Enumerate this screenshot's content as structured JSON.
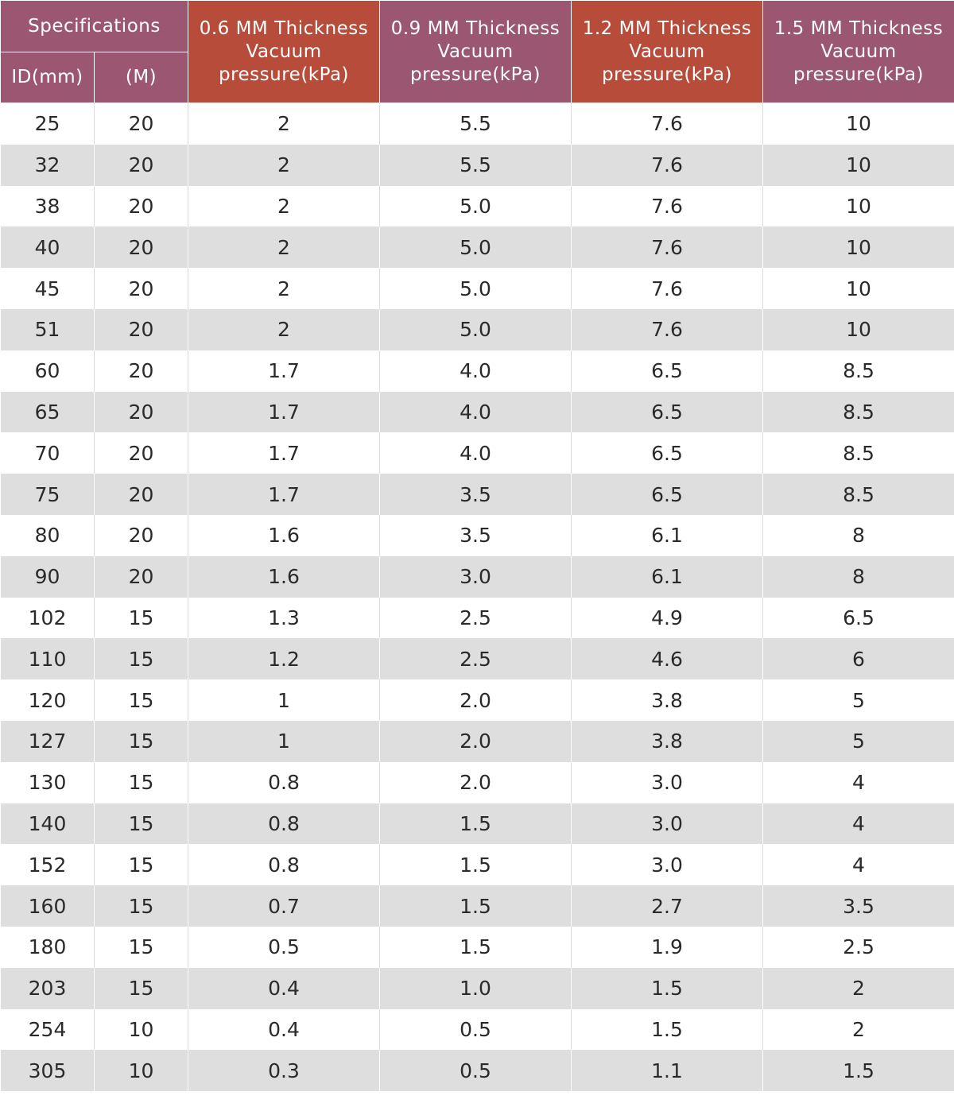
{
  "header": {
    "spec_label": "Specifications",
    "id_label": "ID(mm)",
    "length_label": "(M)",
    "col_06": [
      "0.6 MM Thickness",
      "Vacuum",
      "pressure(kPa)"
    ],
    "col_09": [
      "0.9 MM Thickness",
      "Vacuum",
      "pressure(kPa)"
    ],
    "col_12": [
      "1.2 MM Thickness",
      "Vacuum",
      "pressure(kPa)"
    ],
    "col_15": [
      "1.5 MM Thickness",
      "Vacuum",
      "pressure(kPa)"
    ]
  },
  "colors": {
    "header_purple": "#9b5672",
    "header_orange": "#b84c3b",
    "row_alt": "#dedede"
  },
  "rows": [
    [
      "25",
      "20",
      "2",
      "5.5",
      "7.6",
      "10"
    ],
    [
      "32",
      "20",
      "2",
      "5.5",
      "7.6",
      "10"
    ],
    [
      "38",
      "20",
      "2",
      "5.0",
      "7.6",
      "10"
    ],
    [
      "40",
      "20",
      "2",
      "5.0",
      "7.6",
      "10"
    ],
    [
      "45",
      "20",
      "2",
      "5.0",
      "7.6",
      "10"
    ],
    [
      "51",
      "20",
      "2",
      "5.0",
      "7.6",
      "10"
    ],
    [
      "60",
      "20",
      "1.7",
      "4.0",
      "6.5",
      "8.5"
    ],
    [
      "65",
      "20",
      "1.7",
      "4.0",
      "6.5",
      "8.5"
    ],
    [
      "70",
      "20",
      "1.7",
      "4.0",
      "6.5",
      "8.5"
    ],
    [
      "75",
      "20",
      "1.7",
      "3.5",
      "6.5",
      "8.5"
    ],
    [
      "80",
      "20",
      "1.6",
      "3.5",
      "6.1",
      "8"
    ],
    [
      "90",
      "20",
      "1.6",
      "3.0",
      "6.1",
      "8"
    ],
    [
      "102",
      "15",
      "1.3",
      "2.5",
      "4.9",
      "6.5"
    ],
    [
      "110",
      "15",
      "1.2",
      "2.5",
      "4.6",
      "6"
    ],
    [
      "120",
      "15",
      "1",
      "2.0",
      "3.8",
      "5"
    ],
    [
      "127",
      "15",
      "1",
      "2.0",
      "3.8",
      "5"
    ],
    [
      "130",
      "15",
      "0.8",
      "2.0",
      "3.0",
      "4"
    ],
    [
      "140",
      "15",
      "0.8",
      "1.5",
      "3.0",
      "4"
    ],
    [
      "152",
      "15",
      "0.8",
      "1.5",
      "3.0",
      "4"
    ],
    [
      "160",
      "15",
      "0.7",
      "1.5",
      "2.7",
      "3.5"
    ],
    [
      "180",
      "15",
      "0.5",
      "1.5",
      "1.9",
      "2.5"
    ],
    [
      "203",
      "15",
      "0.4",
      "1.0",
      "1.5",
      "2"
    ],
    [
      "254",
      "10",
      "0.4",
      "0.5",
      "1.5",
      "2"
    ],
    [
      "305",
      "10",
      "0.3",
      "0.5",
      "1.1",
      "1.5"
    ]
  ]
}
